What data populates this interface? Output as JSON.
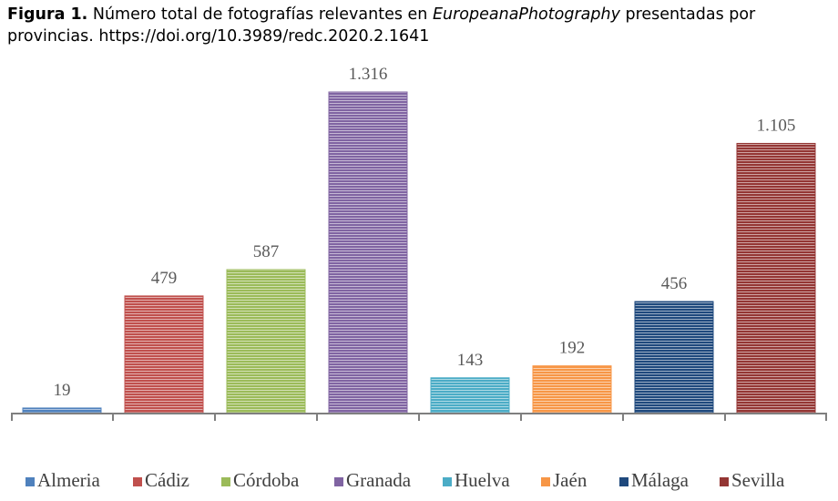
{
  "caption": {
    "label": "Figura 1.",
    "text_before": " Número total de fotografías relevantes en ",
    "italic": "EuropeanaPhotography",
    "text_after": " presentadas por provincias. https://doi.org/10.3989/redc.2020.2.1641"
  },
  "chart_data": {
    "type": "bar",
    "title": "",
    "xlabel": "",
    "ylabel": "",
    "ylim": [
      0,
      1316
    ],
    "grid": false,
    "legend_position": "bottom",
    "categories": [
      "Almeria",
      "Cádiz",
      "Córdoba",
      "Granada",
      "Huelva",
      "Jaén",
      "Málaga",
      "Sevilla"
    ],
    "values": [
      19,
      479,
      587,
      1316,
      143,
      192,
      456,
      1105
    ],
    "value_labels": [
      "19",
      "479",
      "587",
      "1.316",
      "143",
      "192",
      "456",
      "1.105"
    ],
    "colors": [
      "#4f81bd",
      "#c0504d",
      "#9bbb59",
      "#8064a2",
      "#4bacc6",
      "#f79646",
      "#1f497d",
      "#943634"
    ]
  }
}
